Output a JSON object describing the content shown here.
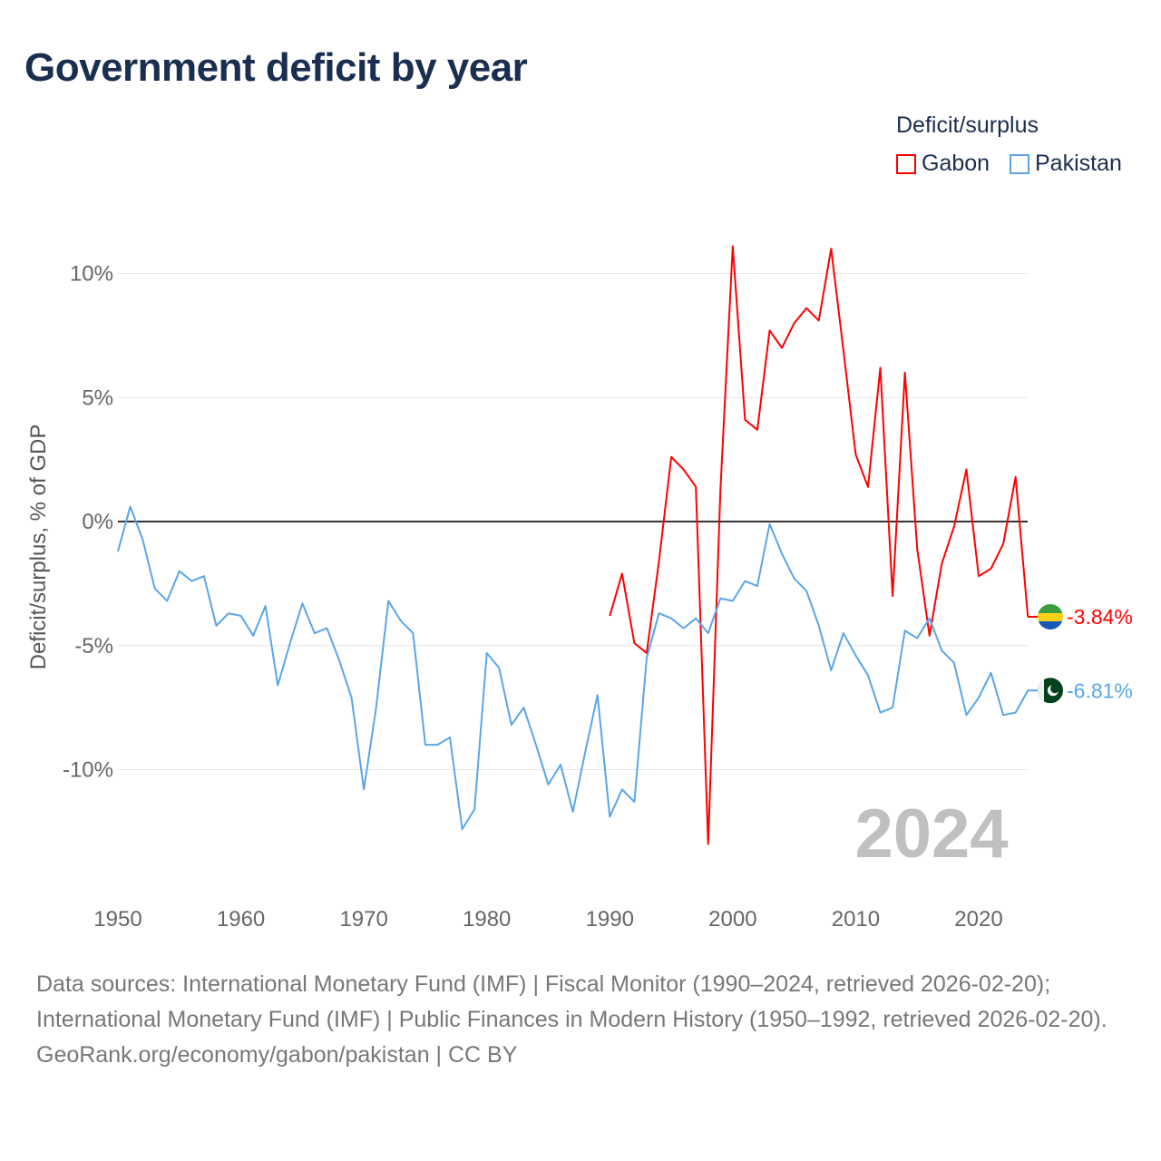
{
  "title": "Government deficit by year",
  "legend": {
    "title": "Deficit/surplus",
    "items": [
      {
        "name": "Gabon",
        "color": "#ff0000"
      },
      {
        "name": "Pakistan",
        "color": "#5aa5ea"
      }
    ]
  },
  "year_label": "2024",
  "sources": {
    "line1": "Data sources: International Monetary Fund (IMF) | Fiscal Monitor (1990–2024, retrieved 2026-02-20); International Monetary Fund (IMF) | Public Finances in Modern History (1950–1992, retrieved 2026-02-20).",
    "line2": "GeoRank.org/economy/gabon/pakistan | CC BY"
  },
  "chart_data": {
    "type": "line",
    "title": "Government deficit by year",
    "xlabel": "",
    "ylabel": "Deficit/surplus, % of GDP",
    "xlim": [
      1950,
      2024
    ],
    "ylim": [
      -13.5,
      11.5
    ],
    "xticks": [
      1950,
      1960,
      1970,
      1980,
      1990,
      2000,
      2010,
      2020
    ],
    "yticks": [
      {
        "v": 10,
        "label": "10%"
      },
      {
        "v": 5,
        "label": "5%"
      },
      {
        "v": 0,
        "label": "0%"
      },
      {
        "v": -5,
        "label": "-5%"
      },
      {
        "v": -10,
        "label": "-10%"
      }
    ],
    "grid": true,
    "legend_position": "top-right",
    "series": [
      {
        "name": "Gabon",
        "color": "#ff0000",
        "end_label": "-3.84%",
        "x_start": 1990,
        "values": [
          -3.8,
          -2.1,
          -4.9,
          -5.3,
          -1.6,
          2.6,
          2.1,
          1.4,
          -13.0,
          1.3,
          11.1,
          4.1,
          3.7,
          7.7,
          7.0,
          8.0,
          8.6,
          8.1,
          11.0,
          6.9,
          2.7,
          1.4,
          6.2,
          -3.0,
          6.0,
          -1.1,
          -4.6,
          -1.7,
          -0.2,
          2.1,
          -2.2,
          -1.9,
          -0.9,
          1.8,
          -3.84
        ]
      },
      {
        "name": "Pakistan",
        "color": "#5aa5ea",
        "end_label": "-6.81%",
        "x_start": 1950,
        "values": [
          -1.2,
          0.6,
          -0.7,
          -2.7,
          -3.2,
          -2.0,
          -2.4,
          -2.2,
          -4.2,
          -3.7,
          -3.8,
          -4.6,
          -3.4,
          -6.6,
          -4.9,
          -3.3,
          -4.5,
          -4.3,
          -5.6,
          -7.1,
          -10.8,
          -7.5,
          -3.2,
          -4.0,
          -4.5,
          -9.0,
          -9.0,
          -8.7,
          -12.4,
          -11.6,
          -5.3,
          -5.9,
          -8.2,
          -7.5,
          -9.0,
          -10.6,
          -9.8,
          -11.7,
          -9.3,
          -7.0,
          -11.9,
          -10.8,
          -11.3,
          -5.5,
          -3.7,
          -3.9,
          -4.3,
          -3.9,
          -4.5,
          -3.1,
          -3.2,
          -2.4,
          -2.6,
          -0.1,
          -1.3,
          -2.3,
          -2.8,
          -4.2,
          -6.0,
          -4.5,
          -5.4,
          -6.2,
          -7.7,
          -7.5,
          -4.4,
          -4.7,
          -3.9,
          -5.2,
          -5.7,
          -7.8,
          -7.1,
          -6.1,
          -7.8,
          -7.7,
          -6.81
        ]
      }
    ]
  }
}
